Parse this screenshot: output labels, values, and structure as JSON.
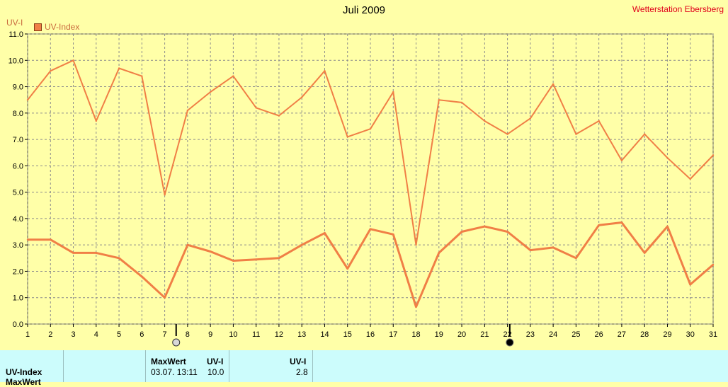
{
  "header": {
    "title": "Juli 2009",
    "station": "Wetterstation Ebersberg",
    "y_unit": "UV-I"
  },
  "legend": {
    "label": "UV-Index"
  },
  "colors": {
    "series": "#f07f46",
    "grid": "#8c8c8c",
    "background": "#ffffa8",
    "table": "#ccfcfc"
  },
  "chart_data": {
    "type": "line",
    "title": "Juli 2009",
    "ylabel": "UV-I",
    "xlim": [
      1,
      31
    ],
    "ylim": [
      0.0,
      11.0
    ],
    "x_ticks": [
      1,
      2,
      3,
      4,
      5,
      6,
      7,
      8,
      9,
      10,
      11,
      12,
      13,
      14,
      15,
      16,
      17,
      18,
      19,
      20,
      21,
      22,
      23,
      24,
      25,
      26,
      27,
      28,
      29,
      30,
      31
    ],
    "y_ticks": [
      "0.0",
      "1.0",
      "2.0",
      "3.0",
      "4.0",
      "5.0",
      "6.0",
      "7.0",
      "8.0",
      "9.0",
      "10.0",
      "11.0"
    ],
    "grid": true,
    "legend_position": "top-left",
    "series": [
      {
        "name": "UV-Index",
        "x": [
          1,
          2,
          3,
          4,
          5,
          6,
          7,
          8,
          9,
          10,
          11,
          12,
          13,
          14,
          15,
          16,
          17,
          18,
          19,
          20,
          21,
          22,
          23,
          24,
          25,
          26,
          27,
          28,
          29,
          30,
          31
        ],
        "max": [
          8.5,
          9.6,
          10.0,
          7.7,
          9.7,
          9.4,
          4.9,
          8.1,
          8.8,
          9.4,
          8.2,
          7.9,
          8.6,
          9.6,
          7.1,
          7.4,
          8.8,
          3.0,
          8.5,
          8.4,
          7.7,
          7.2,
          7.8,
          9.1,
          7.2,
          7.7,
          6.2,
          7.2,
          6.3,
          5.5,
          6.4
        ],
        "mean": [
          3.2,
          3.2,
          2.7,
          2.7,
          2.5,
          1.8,
          1.0,
          3.0,
          2.75,
          2.4,
          2.45,
          2.5,
          3.0,
          3.45,
          2.1,
          3.6,
          3.4,
          0.65,
          2.7,
          3.5,
          3.7,
          3.5,
          2.8,
          2.9,
          2.5,
          3.75,
          3.85,
          2.7,
          3.7,
          1.5,
          2.25
        ]
      }
    ],
    "markers": [
      {
        "x": 7.5,
        "symbol": "full-moon"
      },
      {
        "x": 22.1,
        "symbol": "new-moon"
      }
    ]
  },
  "table": {
    "row_label": "UV-Index",
    "row_label_2": "MaxWert",
    "header_max": "MaxWert",
    "header_unit": "UV-I",
    "header_unit_2": "UV-I",
    "max_time": "03.07.  13:11",
    "max_value": "10.0",
    "mean_value": "2.8"
  }
}
